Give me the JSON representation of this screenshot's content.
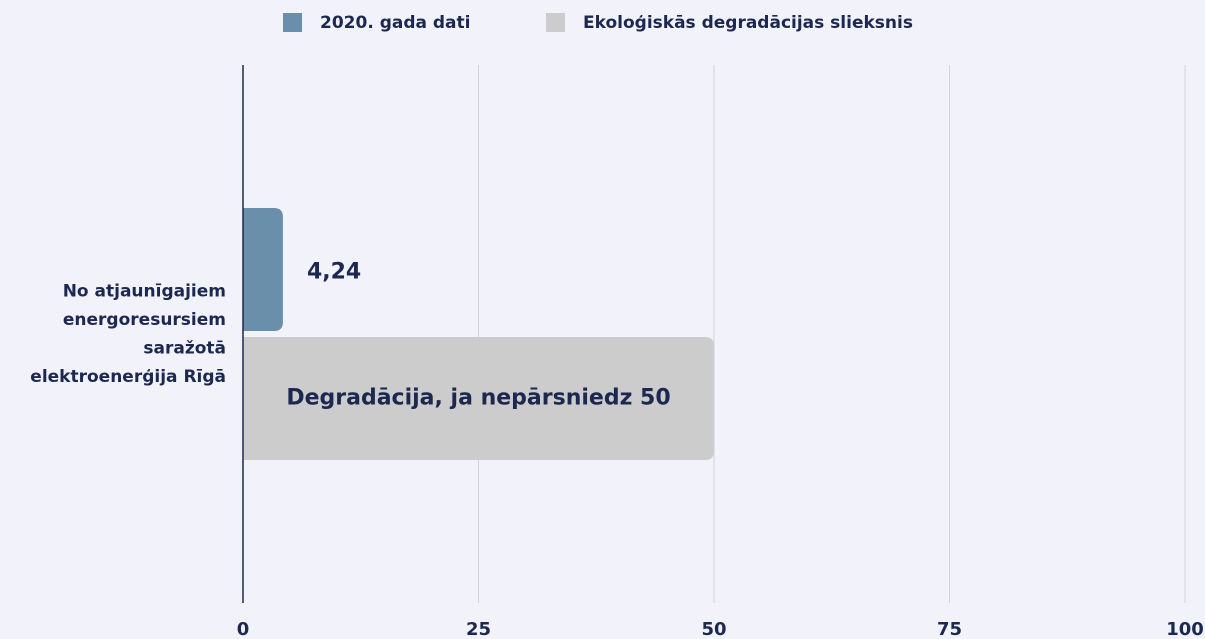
{
  "chart_data": {
    "type": "hbar",
    "categories": [
      "No atjaunīgajiem energoresursiem saražotā elektroenerģija Rīgā"
    ],
    "series": [
      {
        "name": "2020. gada dati",
        "color": "#6a8fab",
        "values": [
          4.24
        ],
        "value_labels": [
          "4,24"
        ]
      },
      {
        "name": "Ekoloģiskās degradācijas slieksnis",
        "color": "#cccccc",
        "values": [
          50
        ],
        "value_labels": [
          "Degradācija, ja nepārsniedz 50"
        ]
      }
    ],
    "xlim": [
      0,
      100
    ],
    "xticks": [
      0,
      25,
      50,
      75,
      100
    ],
    "grid": true
  }
}
